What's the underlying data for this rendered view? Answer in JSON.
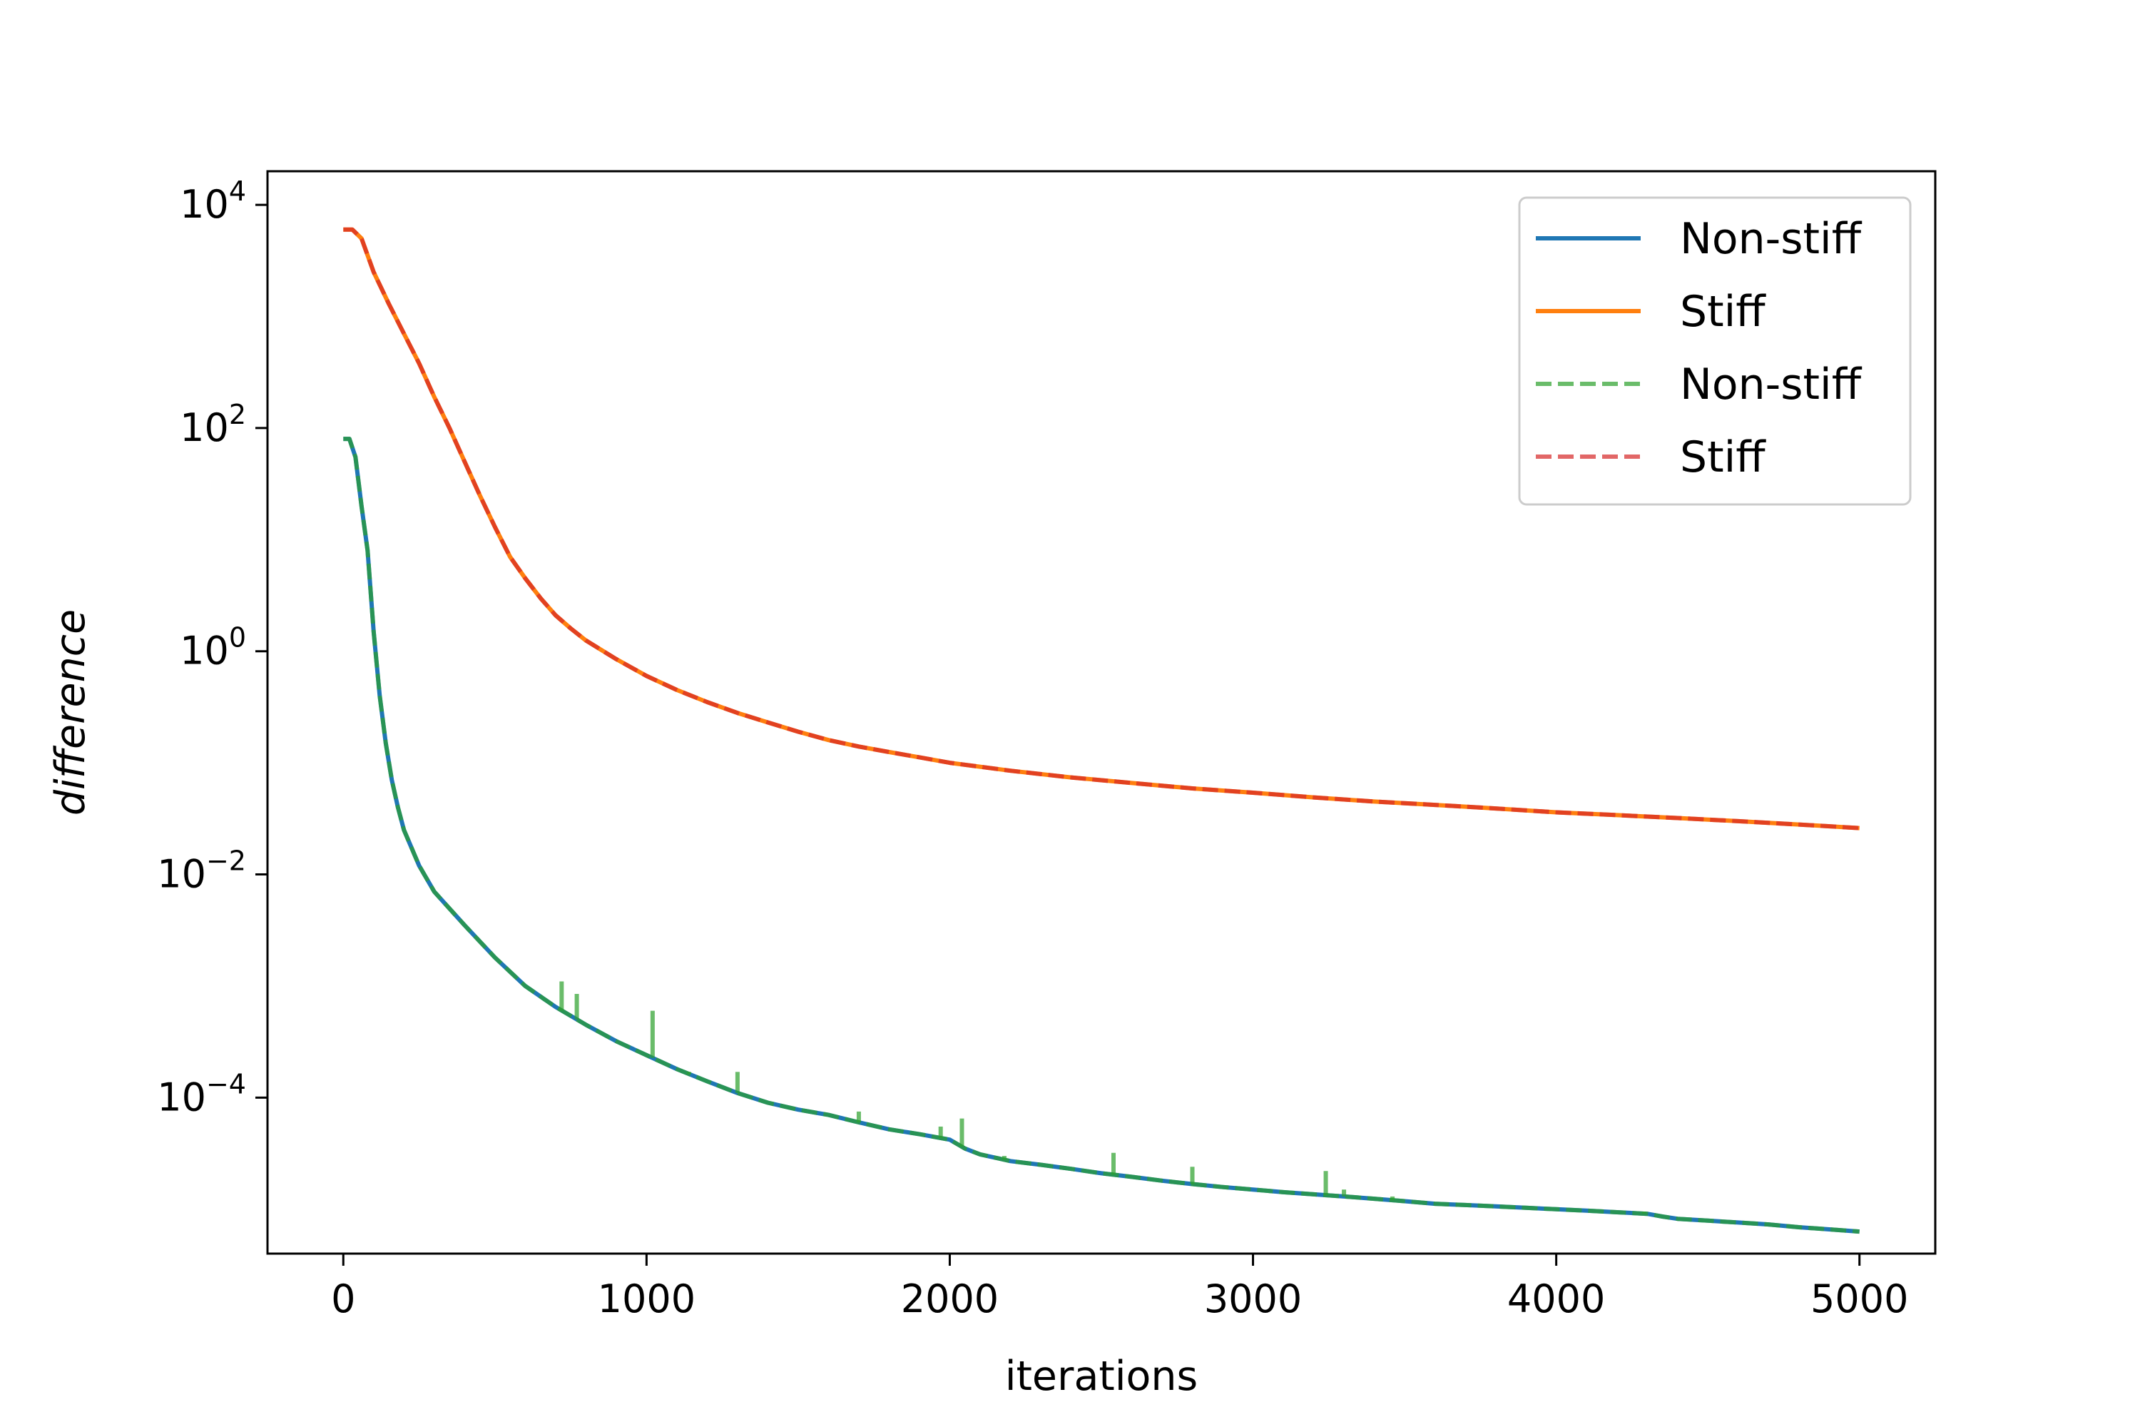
{
  "chart_data": {
    "type": "line",
    "xlabel": "iterations",
    "ylabel": "difference",
    "y_scale": "log",
    "xlim": [
      -250,
      5250
    ],
    "ylim": [
      4e-06,
      20000
    ],
    "x_ticks": [
      0,
      1000,
      2000,
      3000,
      4000,
      5000
    ],
    "x_tick_labels": [
      "0",
      "1000",
      "2000",
      "3000",
      "4000",
      "5000"
    ],
    "y_ticks": [
      0.0001,
      0.01,
      1,
      100,
      10000
    ],
    "y_tick_labels": [
      {
        "base": "10",
        "exp": "−4"
      },
      {
        "base": "10",
        "exp": "−2"
      },
      {
        "base": "10",
        "exp": "0"
      },
      {
        "base": "10",
        "exp": "2"
      },
      {
        "base": "10",
        "exp": "4"
      }
    ],
    "grid": false,
    "legend_position": "top-right",
    "series": [
      {
        "name": "Non-stiff",
        "color": "#1f77b4",
        "style": "solid",
        "x": [
          0,
          20,
          40,
          60,
          80,
          100,
          120,
          140,
          160,
          180,
          200,
          250,
          300,
          400,
          500,
          600,
          700,
          800,
          900,
          1000,
          1100,
          1200,
          1300,
          1400,
          1500,
          1600,
          1700,
          1800,
          1900,
          2000,
          2050,
          2100,
          2200,
          2300,
          2400,
          2500,
          2600,
          2700,
          2800,
          2900,
          3000,
          3100,
          3200,
          3300,
          3400,
          3500,
          3600,
          3700,
          3800,
          3900,
          4000,
          4100,
          4200,
          4300,
          4350,
          4400,
          4500,
          4600,
          4700,
          4800,
          4900,
          5000
        ],
        "y": [
          80,
          80,
          55,
          20,
          8,
          1.5,
          0.4,
          0.15,
          0.07,
          0.04,
          0.025,
          0.012,
          0.007,
          0.0035,
          0.0018,
          0.001,
          0.00065,
          0.00045,
          0.00032,
          0.00024,
          0.00018,
          0.00014,
          0.00011,
          9e-05,
          7.8e-05,
          7e-05,
          6e-05,
          5.2e-05,
          4.7e-05,
          4.2e-05,
          3.5e-05,
          3.1e-05,
          2.7e-05,
          2.5e-05,
          2.3e-05,
          2.1e-05,
          1.95e-05,
          1.8e-05,
          1.68e-05,
          1.58e-05,
          1.5e-05,
          1.42e-05,
          1.36e-05,
          1.3e-05,
          1.24e-05,
          1.18e-05,
          1.12e-05,
          1.09e-05,
          1.06e-05,
          1.03e-05,
          1e-05,
          9.7e-06,
          9.4e-06,
          9.1e-06,
          8.6e-06,
          8.2e-06,
          7.9e-06,
          7.6e-06,
          7.3e-06,
          6.9e-06,
          6.6e-06,
          6.3e-06
        ]
      },
      {
        "name": "Stiff",
        "color": "#ff7f0e",
        "style": "solid",
        "x": [
          0,
          30,
          60,
          100,
          150,
          200,
          250,
          300,
          350,
          400,
          450,
          500,
          550,
          600,
          650,
          700,
          750,
          800,
          900,
          1000,
          1100,
          1200,
          1300,
          1400,
          1500,
          1600,
          1700,
          1800,
          1900,
          2000,
          2200,
          2400,
          2600,
          2800,
          3000,
          3200,
          3400,
          3600,
          3800,
          4000,
          4200,
          4400,
          4600,
          4800,
          5000
        ],
        "y": [
          6000,
          6000,
          5000,
          2500,
          1300,
          700,
          380,
          190,
          100,
          50,
          25,
          13,
          7,
          4.5,
          3,
          2.1,
          1.6,
          1.25,
          0.85,
          0.6,
          0.45,
          0.35,
          0.28,
          0.23,
          0.19,
          0.16,
          0.14,
          0.125,
          0.112,
          0.1,
          0.085,
          0.074,
          0.066,
          0.059,
          0.054,
          0.049,
          0.045,
          0.042,
          0.039,
          0.036,
          0.034,
          0.032,
          0.03,
          0.028,
          0.026
        ]
      },
      {
        "name": "Non-stiff",
        "color": "#2ca02c",
        "style": "dashed",
        "opacity": 0.7,
        "x": [
          0,
          20,
          40,
          60,
          80,
          100,
          120,
          140,
          160,
          180,
          200,
          250,
          300,
          400,
          500,
          600,
          700,
          800,
          900,
          1000,
          1100,
          1200,
          1300,
          1400,
          1500,
          1600,
          1700,
          1800,
          1900,
          2000,
          2050,
          2100,
          2200,
          2300,
          2400,
          2500,
          2600,
          2700,
          2800,
          2900,
          3000,
          3100,
          3200,
          3300,
          3400,
          3500,
          3600,
          3700,
          3800,
          3900,
          4000,
          4100,
          4200,
          4300,
          4350,
          4400,
          4500,
          4600,
          4700,
          4800,
          4900,
          5000
        ],
        "y": [
          80,
          80,
          55,
          20,
          8,
          1.5,
          0.4,
          0.15,
          0.07,
          0.04,
          0.025,
          0.012,
          0.007,
          0.0035,
          0.0018,
          0.001,
          0.00065,
          0.00045,
          0.00032,
          0.00024,
          0.00018,
          0.00014,
          0.00011,
          9e-05,
          7.8e-05,
          7e-05,
          6e-05,
          5.2e-05,
          4.7e-05,
          4.2e-05,
          3.5e-05,
          3.1e-05,
          2.7e-05,
          2.5e-05,
          2.3e-05,
          2.1e-05,
          1.95e-05,
          1.8e-05,
          1.68e-05,
          1.58e-05,
          1.5e-05,
          1.42e-05,
          1.36e-05,
          1.3e-05,
          1.24e-05,
          1.18e-05,
          1.12e-05,
          1.09e-05,
          1.06e-05,
          1.03e-05,
          1e-05,
          9.7e-06,
          9.4e-06,
          9.1e-06,
          8.6e-06,
          8.2e-06,
          7.9e-06,
          7.6e-06,
          7.3e-06,
          6.9e-06,
          6.6e-06,
          6.3e-06
        ],
        "spikes": [
          {
            "x": 720,
            "y": 0.0011
          },
          {
            "x": 770,
            "y": 0.00085
          },
          {
            "x": 1020,
            "y": 0.0006
          },
          {
            "x": 1140,
            "y": 0.00017
          },
          {
            "x": 1300,
            "y": 0.00017
          },
          {
            "x": 1700,
            "y": 7.5e-05
          },
          {
            "x": 1970,
            "y": 5.5e-05
          },
          {
            "x": 2040,
            "y": 6.5e-05
          },
          {
            "x": 2180,
            "y": 3e-05
          },
          {
            "x": 2540,
            "y": 3.2e-05
          },
          {
            "x": 2800,
            "y": 2.4e-05
          },
          {
            "x": 3240,
            "y": 2.2e-05
          },
          {
            "x": 3300,
            "y": 1.5e-05
          },
          {
            "x": 3460,
            "y": 1.3e-05
          },
          {
            "x": 4290,
            "y": 9.5e-06
          }
        ]
      },
      {
        "name": "Stiff",
        "color": "#d62728",
        "style": "dashed",
        "opacity": 0.7,
        "x": [
          0,
          30,
          60,
          100,
          150,
          200,
          250,
          300,
          350,
          400,
          450,
          500,
          550,
          600,
          650,
          700,
          750,
          800,
          900,
          1000,
          1100,
          1200,
          1300,
          1400,
          1500,
          1600,
          1700,
          1800,
          1900,
          2000,
          2200,
          2400,
          2600,
          2800,
          3000,
          3200,
          3400,
          3600,
          3800,
          4000,
          4200,
          4400,
          4600,
          4800,
          5000
        ],
        "y": [
          6000,
          6000,
          5000,
          2500,
          1300,
          700,
          380,
          190,
          100,
          50,
          25,
          13,
          7,
          4.5,
          3,
          2.1,
          1.6,
          1.25,
          0.85,
          0.6,
          0.45,
          0.35,
          0.28,
          0.23,
          0.19,
          0.16,
          0.14,
          0.125,
          0.112,
          0.1,
          0.085,
          0.074,
          0.066,
          0.059,
          0.054,
          0.049,
          0.045,
          0.042,
          0.039,
          0.036,
          0.034,
          0.032,
          0.03,
          0.028,
          0.026
        ]
      }
    ]
  }
}
